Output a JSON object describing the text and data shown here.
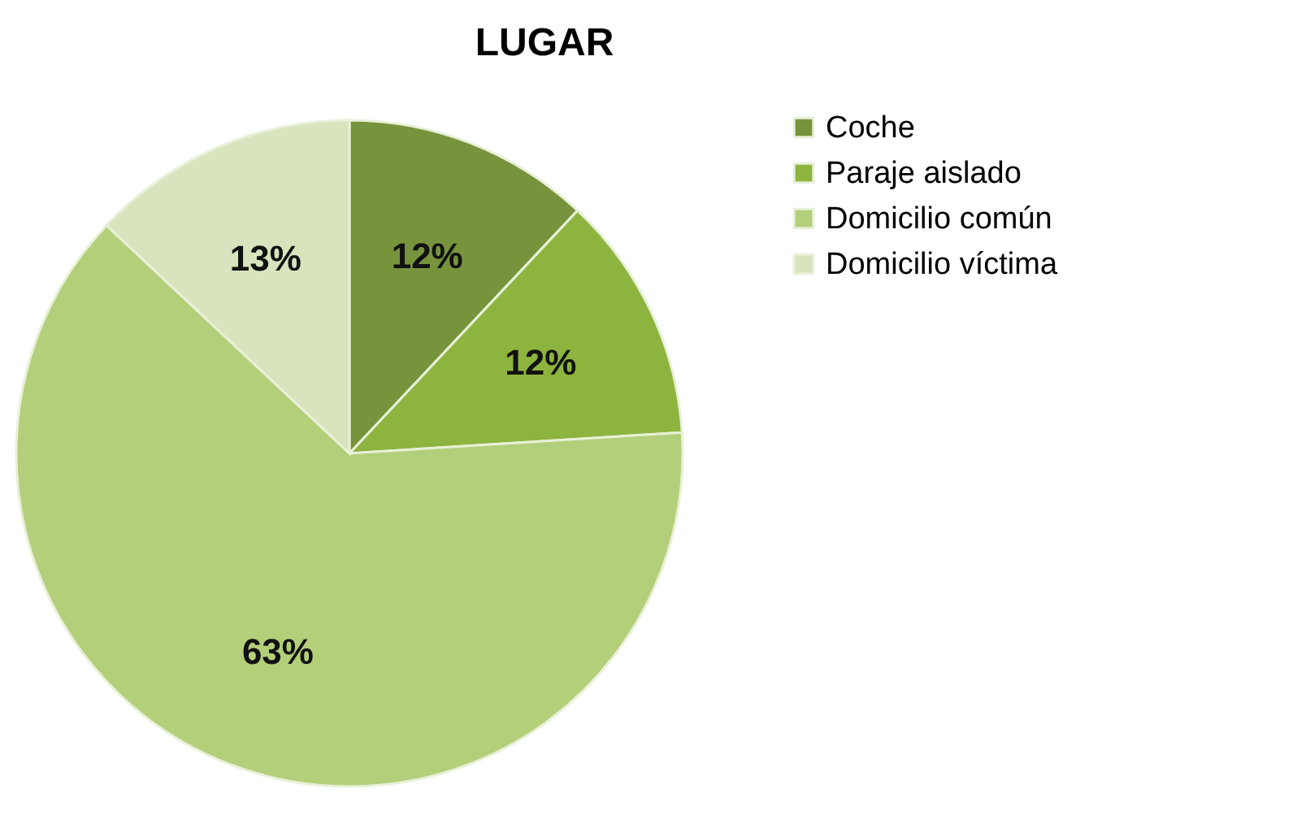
{
  "chart_data": {
    "type": "pie",
    "title": "LUGAR",
    "categories": [
      "Coche",
      "Paraje aislado",
      "Domicilio común",
      "Domicilio víctima"
    ],
    "values": [
      12,
      12,
      63,
      13
    ],
    "value_labels": [
      "12%",
      "12%",
      "63%",
      "13%"
    ],
    "colors": [
      "#77933c",
      "#8db43e",
      "#b3cf7a",
      "#d7e4bd"
    ],
    "legend": "right"
  }
}
